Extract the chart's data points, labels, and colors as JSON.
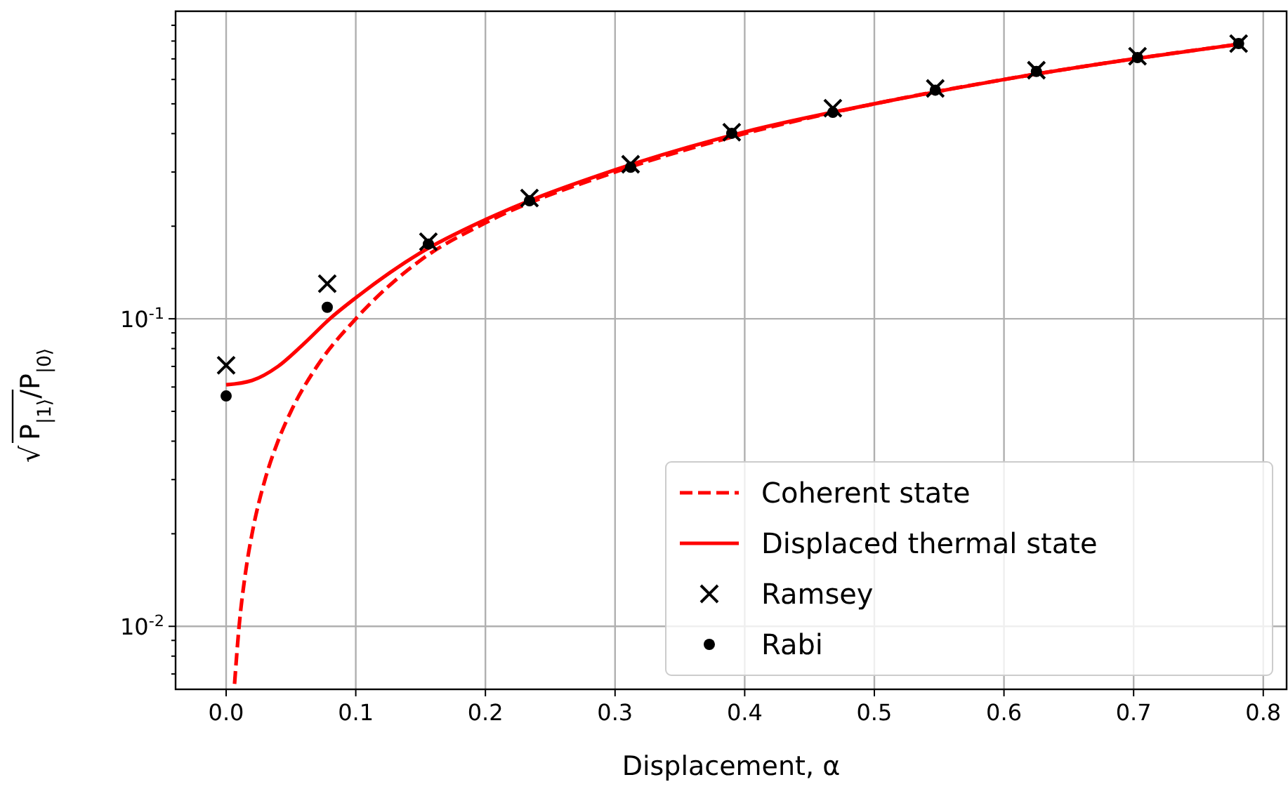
{
  "chart_data": {
    "type": "line",
    "xlabel": "Displacement, α",
    "ylabel": "√P$_{|1⟩}$/P$_{|0⟩}$",
    "log": "y",
    "grid": true,
    "legend": "bottom right",
    "xlim": [
      -0.039,
      0.818
    ],
    "xticks": [
      {
        "value": 0,
        "label": "0.0"
      },
      0.1,
      0.2,
      0.3,
      0.4,
      0.5,
      0.6,
      0.7,
      0.8
    ],
    "ylim": [
      0.00624,
      1.0
    ],
    "yticks": [
      {
        "value": 0.007,
        "label": null
      },
      {
        "value": 0.008,
        "label": null
      },
      {
        "value": 0.009,
        "label": null
      },
      {
        "value": 0.01,
        "label": "10$^{-2}$"
      },
      {
        "value": 0.02,
        "label": null
      },
      {
        "value": 0.03,
        "label": null
      },
      {
        "value": 0.04,
        "label": null
      },
      {
        "value": 0.05,
        "label": null
      },
      {
        "value": 0.06,
        "label": null
      },
      {
        "value": 0.07,
        "label": null
      },
      {
        "value": 0.08,
        "label": null
      },
      {
        "value": 0.09,
        "label": null
      },
      {
        "value": 0.1,
        "label": "10$^{-1}$"
      },
      {
        "value": 0.2,
        "label": null
      },
      {
        "value": 0.3,
        "label": null
      },
      {
        "value": 0.4,
        "label": null
      },
      {
        "value": 0.5,
        "label": null
      },
      {
        "value": 0.6,
        "label": null
      },
      {
        "value": 0.7,
        "label": null
      },
      {
        "value": 0.8,
        "label": null
      },
      {
        "value": 0.9,
        "label": null
      }
    ],
    "series": [
      {
        "name": "Coherent state",
        "type": "line",
        "line_style": "dashed",
        "marker": "none",
        "color": "#ff0000",
        "x": [
          0.0065,
          0.01,
          0.015,
          0.02,
          0.03,
          0.04,
          0.05,
          0.07,
          0.1,
          0.15,
          0.2,
          0.3,
          0.4,
          0.5,
          0.6,
          0.7,
          0.78
        ],
        "values": [
          0.0065,
          0.01,
          0.015,
          0.02,
          0.03,
          0.04,
          0.05,
          0.07,
          0.1,
          0.155,
          0.205,
          0.3,
          0.4,
          0.5,
          0.6,
          0.7,
          0.78
        ]
      },
      {
        "name": "Displaced thermal state",
        "type": "line",
        "line_style": "solid",
        "marker": "none",
        "color": "#ff0000",
        "x": [
          0,
          0.02,
          0.04,
          0.06,
          0.08,
          0.1,
          0.15,
          0.2,
          0.3,
          0.4,
          0.5,
          0.6,
          0.7,
          0.78
        ],
        "values": [
          0.061,
          0.063,
          0.07,
          0.083,
          0.1,
          0.117,
          0.164,
          0.21,
          0.305,
          0.405,
          0.5,
          0.6,
          0.7,
          0.78
        ]
      },
      {
        "name": "Ramsey",
        "type": "scatter",
        "marker": "cross",
        "color": "#000000",
        "x": [
          0,
          0.078,
          0.156,
          0.234,
          0.312,
          0.39,
          0.468,
          0.547,
          0.625,
          0.703,
          0.781
        ],
        "values": [
          0.0706,
          0.13,
          0.178,
          0.247,
          0.318,
          0.404,
          0.484,
          0.561,
          0.643,
          0.714,
          0.785
        ]
      },
      {
        "name": "Rabi",
        "type": "scatter",
        "marker": "circle",
        "color": "#000000",
        "x": [
          0,
          0.078,
          0.156,
          0.234,
          0.312,
          0.39,
          0.468,
          0.547,
          0.625,
          0.703,
          0.781
        ],
        "values": [
          0.0561,
          0.109,
          0.175,
          0.242,
          0.311,
          0.401,
          0.469,
          0.554,
          0.637,
          0.707,
          0.785
        ]
      }
    ]
  }
}
